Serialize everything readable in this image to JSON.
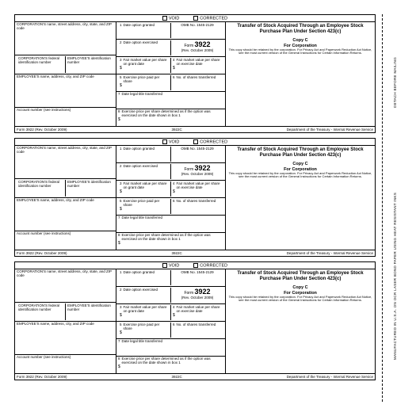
{
  "checkboxes": {
    "void": "VOID",
    "corrected": "CORRECTED"
  },
  "left": {
    "corp_name": "CORPORATION'S name, street address, city, state, and ZIP code",
    "corp_fed_id": "CORPORATION'S federal identification number",
    "emp_id": "EMPLOYEE'S identification number",
    "emp_name": "EMPLOYEE'S name, address, city, and ZIP code",
    "account": "Account number (see instructions)"
  },
  "boxes": {
    "b1": {
      "n": "1",
      "t": "Date option granted"
    },
    "b2": {
      "n": "2",
      "t": "Date option exercised"
    },
    "b3": {
      "n": "3",
      "t": "Fair market value per share on grant date"
    },
    "b4": {
      "n": "4",
      "t": "Fair market value per share on exercise date"
    },
    "b5": {
      "n": "5",
      "t": "Exercise price paid per share"
    },
    "b6": {
      "n": "6",
      "t": "No. of shares transferred"
    },
    "b7": {
      "n": "7",
      "t": "Date legal title transferred"
    },
    "b8": {
      "n": "8",
      "t": "Exercise price per share determined as if the option was exercised on the date shown in box 1"
    }
  },
  "form_header": {
    "omb": "OMB No. 1545-2129",
    "form_word": "Form",
    "form_num": "3922",
    "rev": "(Rev. October 2009)"
  },
  "right": {
    "title": "Transfer of Stock Acquired Through an Employee Stock Purchase Plan Under Section 423(c)",
    "copy_c": "Copy C",
    "for_corp": "For Corporation",
    "notice": "This copy should be retained by the corporation. For Privacy Act and Paperwork Reduction Act Notice, see the most current version of the General Instructions for Certain Information Returns."
  },
  "footer": {
    "left": "Form 3922 (Rev. October 2009)",
    "mid": "3922C",
    "right": "Department of the Treasury - Internal Revenue Service"
  },
  "side": {
    "detach": "DETACH BEFORE MAILING",
    "mfg": "MANUFACTURED IN U.S.A. ON OCR LASER BOND PAPER USING HEAT RESISTANT INKS"
  },
  "ds": "$"
}
